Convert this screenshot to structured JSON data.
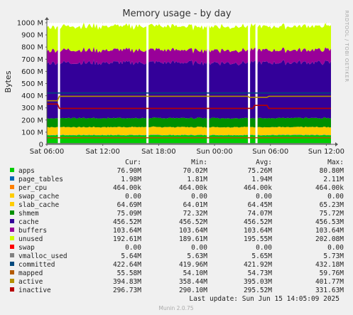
{
  "chart_data": {
    "type": "area",
    "title": "Memory usage - by day",
    "ylabel": "Bytes",
    "side_label": "RRDTOOL / TOBI OETIKER",
    "ylim": [
      0,
      1000000000
    ],
    "y_ticks": [
      {
        "value": 0,
        "label": "0"
      },
      {
        "value": 100000000,
        "label": "100 M"
      },
      {
        "value": 200000000,
        "label": "200 M"
      },
      {
        "value": 300000000,
        "label": "300 M"
      },
      {
        "value": 400000000,
        "label": "400 M"
      },
      {
        "value": 500000000,
        "label": "500 M"
      },
      {
        "value": 600000000,
        "label": "600 M"
      },
      {
        "value": 700000000,
        "label": "700 M"
      },
      {
        "value": 800000000,
        "label": "800 M"
      },
      {
        "value": 900000000,
        "label": "900 M"
      },
      {
        "value": 1000000000,
        "label": "1000 M"
      }
    ],
    "x_ticks": [
      "Sat 06:00",
      "Sat 12:00",
      "Sat 18:00",
      "Sun 00:00",
      "Sun 06:00",
      "Sun 12:00"
    ],
    "x_hours": [
      0,
      30.5
    ],
    "x_tick_hours": [
      0,
      6,
      12,
      18,
      24,
      30
    ],
    "gaps_hours": [
      1.3,
      10.8,
      17.3,
      21.7,
      22.5
    ],
    "grid": true,
    "legend_columns": [
      "Cur:",
      "Min:",
      "Avg:",
      "Max:"
    ],
    "series": [
      {
        "name": "apps",
        "color": "#00cc00",
        "kind": "area",
        "cur": "76.90M",
        "min": "70.02M",
        "avg": "75.26M",
        "max": "80.80M",
        "value": 75260000
      },
      {
        "name": "page_tables",
        "color": "#0066b3",
        "kind": "area",
        "cur": "1.98M",
        "min": "1.81M",
        "avg": "1.94M",
        "max": "2.11M",
        "value": 1940000
      },
      {
        "name": "per_cpu",
        "color": "#ff8000",
        "kind": "area",
        "cur": "464.00k",
        "min": "464.00k",
        "avg": "464.00k",
        "max": "464.00k",
        "value": 464000
      },
      {
        "name": "swap_cache",
        "color": "#ffcc00",
        "kind": "area",
        "cur": "0.00",
        "min": "0.00",
        "avg": "0.00",
        "max": "0.00",
        "value": 0
      },
      {
        "name": "slab_cache",
        "color": "#ffcc00",
        "kind": "area",
        "cur": "64.69M",
        "min": "64.01M",
        "avg": "64.45M",
        "max": "65.23M",
        "value": 64450000
      },
      {
        "name": "shmem",
        "color": "#008f00",
        "kind": "area",
        "cur": "75.09M",
        "min": "72.32M",
        "avg": "74.07M",
        "max": "75.72M",
        "value": 74070000
      },
      {
        "name": "cache",
        "color": "#330099",
        "kind": "area",
        "cur": "456.52M",
        "min": "456.52M",
        "avg": "456.52M",
        "max": "456.53M",
        "value": 456520000
      },
      {
        "name": "buffers",
        "color": "#990099",
        "kind": "area",
        "cur": "103.64M",
        "min": "103.64M",
        "avg": "103.64M",
        "max": "103.64M",
        "value": 103640000
      },
      {
        "name": "unused",
        "color": "#ccff00",
        "kind": "area",
        "cur": "192.61M",
        "min": "189.61M",
        "avg": "195.55M",
        "max": "202.08M",
        "value": 195550000
      },
      {
        "name": "swap",
        "color": "#ff0000",
        "kind": "area",
        "cur": "0.00",
        "min": "0.00",
        "avg": "0.00",
        "max": "0.00",
        "value": 0
      },
      {
        "name": "vmalloc_used",
        "color": "#808080",
        "kind": "line",
        "cur": "5.64M",
        "min": "5.63M",
        "avg": "5.65M",
        "max": "5.73M",
        "value": 5650000
      },
      {
        "name": "committed",
        "color": "#00487d",
        "kind": "line",
        "cur": "422.64M",
        "min": "419.96M",
        "avg": "421.92M",
        "max": "432.18M",
        "value": 421920000
      },
      {
        "name": "mapped",
        "color": "#b35a00",
        "kind": "line",
        "cur": "55.58M",
        "min": "54.10M",
        "avg": "54.73M",
        "max": "59.76M",
        "value": 54730000
      },
      {
        "name": "active",
        "color": "#b38f00",
        "kind": "line",
        "cur": "394.83M",
        "min": "358.44M",
        "avg": "395.03M",
        "max": "401.77M",
        "value": 395030000
      },
      {
        "name": "inactive",
        "color": "#b80000",
        "kind": "line",
        "cur": "296.73M",
        "min": "290.10M",
        "avg": "295.52M",
        "max": "331.63M",
        "value": 295520000
      }
    ],
    "footer": "Last update: Sun Jun 15 14:05:09 2025",
    "generator": "Munin 2.0.75"
  }
}
